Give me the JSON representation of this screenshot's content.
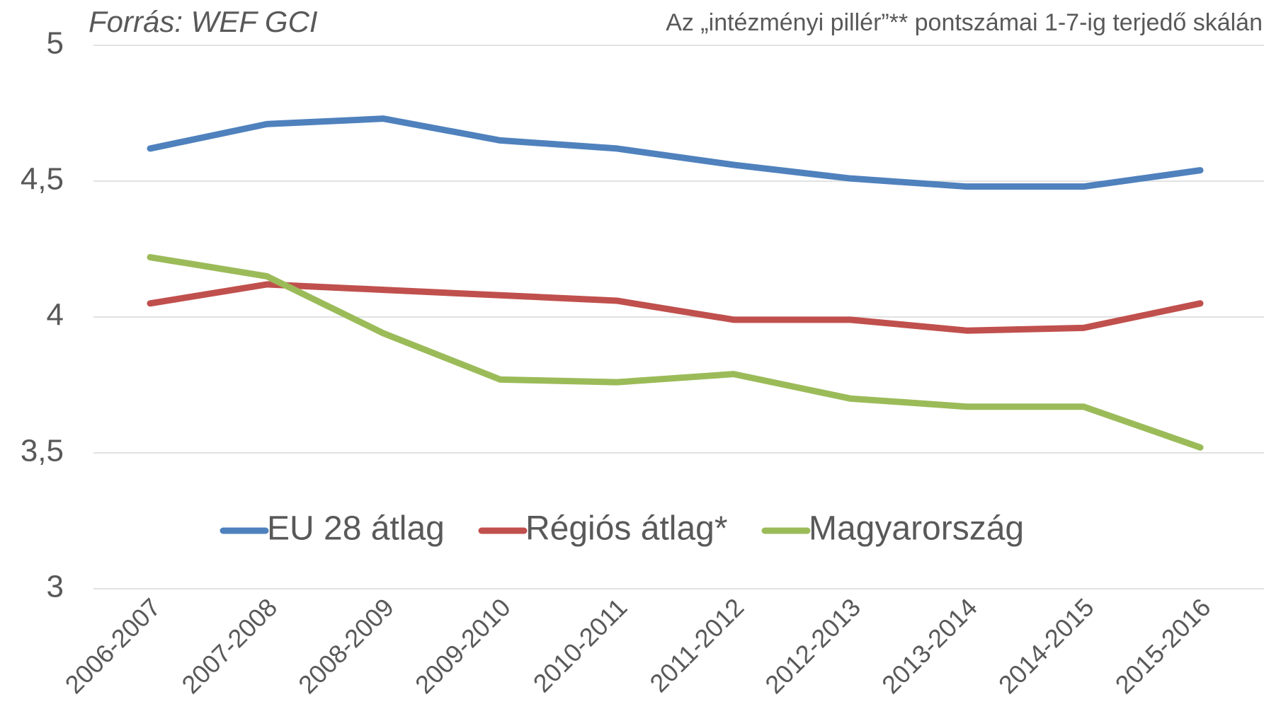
{
  "chart_data": {
    "type": "line",
    "source": "Forrás: WEF GCI",
    "title": "Az „intézményi pillér”** pontszámai 1-7-ig terjedő skálán",
    "categories": [
      "2006-2007",
      "2007-2008",
      "2008-2009",
      "2009-2010",
      "2010-2011",
      "2011-2012",
      "2012-2013",
      "2013-2014",
      "2014-2015",
      "2015-2016"
    ],
    "series": [
      {
        "name": "EU 28 átlag",
        "color": "#4f81bd",
        "values": [
          4.62,
          4.71,
          4.73,
          4.65,
          4.62,
          4.56,
          4.51,
          4.48,
          4.48,
          4.54
        ]
      },
      {
        "name": "Régiós átlag*",
        "color": "#c0504d",
        "values": [
          4.05,
          4.12,
          4.1,
          4.08,
          4.06,
          3.99,
          3.99,
          3.95,
          3.96,
          4.05
        ]
      },
      {
        "name": "Magyarország",
        "color": "#9bbb59",
        "values": [
          4.22,
          4.15,
          3.94,
          3.77,
          3.76,
          3.79,
          3.7,
          3.67,
          3.67,
          3.52
        ]
      }
    ],
    "ylim": [
      3,
      5
    ],
    "yticks": [
      3,
      {
        "value": 3.5,
        "label": "3,5"
      },
      4,
      {
        "value": 4.5,
        "label": "4,5"
      },
      5
    ],
    "grid": true
  }
}
